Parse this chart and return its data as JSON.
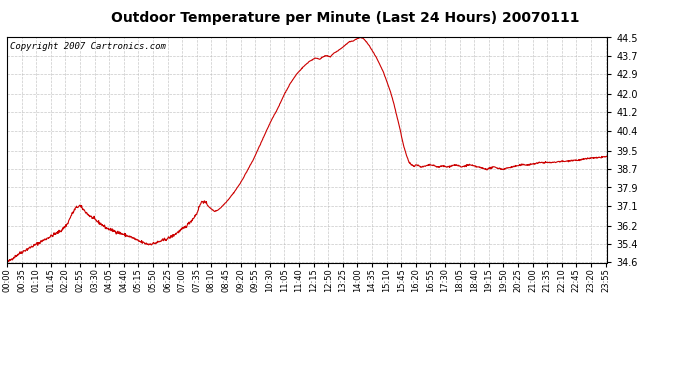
{
  "title": "Outdoor Temperature per Minute (Last 24 Hours) 20070111",
  "copyright_text": "Copyright 2007 Cartronics.com",
  "line_color": "#cc0000",
  "background_color": "#ffffff",
  "plot_bg_color": "#ffffff",
  "grid_color": "#bbbbbb",
  "yticks": [
    34.6,
    35.4,
    36.2,
    37.1,
    37.9,
    38.7,
    39.5,
    40.4,
    41.2,
    42.0,
    42.9,
    43.7,
    44.5
  ],
  "ylim": [
    34.6,
    44.5
  ],
  "xtick_labels": [
    "00:00",
    "00:35",
    "01:10",
    "01:45",
    "02:20",
    "02:55",
    "03:30",
    "04:05",
    "04:40",
    "05:15",
    "05:50",
    "06:25",
    "07:00",
    "07:35",
    "08:10",
    "08:45",
    "09:20",
    "09:55",
    "10:30",
    "11:05",
    "11:40",
    "12:15",
    "12:50",
    "13:25",
    "14:00",
    "14:35",
    "15:10",
    "15:45",
    "16:20",
    "16:55",
    "17:30",
    "18:05",
    "18:40",
    "19:15",
    "19:50",
    "20:25",
    "21:00",
    "21:35",
    "22:10",
    "22:45",
    "23:20",
    "23:55"
  ],
  "control_points": [
    [
      0,
      34.6
    ],
    [
      15,
      34.8
    ],
    [
      30,
      35.0
    ],
    [
      50,
      35.2
    ],
    [
      70,
      35.4
    ],
    [
      90,
      35.6
    ],
    [
      110,
      35.8
    ],
    [
      130,
      36.0
    ],
    [
      145,
      36.3
    ],
    [
      155,
      36.7
    ],
    [
      165,
      37.0
    ],
    [
      175,
      37.1
    ],
    [
      185,
      36.9
    ],
    [
      195,
      36.7
    ],
    [
      210,
      36.5
    ],
    [
      225,
      36.3
    ],
    [
      240,
      36.1
    ],
    [
      255,
      36.0
    ],
    [
      270,
      35.9
    ],
    [
      285,
      35.8
    ],
    [
      300,
      35.7
    ],
    [
      315,
      35.55
    ],
    [
      330,
      35.45
    ],
    [
      340,
      35.4
    ],
    [
      355,
      35.45
    ],
    [
      370,
      35.55
    ],
    [
      385,
      35.65
    ],
    [
      400,
      35.8
    ],
    [
      415,
      36.0
    ],
    [
      430,
      36.2
    ],
    [
      445,
      36.5
    ],
    [
      455,
      36.75
    ],
    [
      462,
      37.1
    ],
    [
      468,
      37.3
    ],
    [
      475,
      37.25
    ],
    [
      482,
      37.1
    ],
    [
      490,
      36.95
    ],
    [
      498,
      36.85
    ],
    [
      505,
      36.9
    ],
    [
      512,
      37.0
    ],
    [
      520,
      37.15
    ],
    [
      530,
      37.35
    ],
    [
      545,
      37.7
    ],
    [
      560,
      38.1
    ],
    [
      575,
      38.6
    ],
    [
      590,
      39.1
    ],
    [
      605,
      39.7
    ],
    [
      620,
      40.3
    ],
    [
      635,
      40.9
    ],
    [
      650,
      41.4
    ],
    [
      665,
      42.0
    ],
    [
      680,
      42.5
    ],
    [
      695,
      42.9
    ],
    [
      710,
      43.2
    ],
    [
      725,
      43.45
    ],
    [
      740,
      43.6
    ],
    [
      750,
      43.55
    ],
    [
      758,
      43.65
    ],
    [
      765,
      43.7
    ],
    [
      775,
      43.65
    ],
    [
      783,
      43.8
    ],
    [
      792,
      43.9
    ],
    [
      800,
      44.0
    ],
    [
      810,
      44.15
    ],
    [
      820,
      44.3
    ],
    [
      830,
      44.35
    ],
    [
      840,
      44.45
    ],
    [
      848,
      44.5
    ],
    [
      855,
      44.45
    ],
    [
      862,
      44.3
    ],
    [
      870,
      44.1
    ],
    [
      878,
      43.85
    ],
    [
      886,
      43.6
    ],
    [
      894,
      43.3
    ],
    [
      902,
      43.0
    ],
    [
      910,
      42.6
    ],
    [
      918,
      42.2
    ],
    [
      926,
      41.7
    ],
    [
      934,
      41.1
    ],
    [
      942,
      40.5
    ],
    [
      950,
      39.8
    ],
    [
      958,
      39.3
    ],
    [
      964,
      39.0
    ],
    [
      970,
      38.9
    ],
    [
      976,
      38.85
    ],
    [
      982,
      38.9
    ],
    [
      988,
      38.85
    ],
    [
      995,
      38.8
    ],
    [
      1005,
      38.85
    ],
    [
      1015,
      38.9
    ],
    [
      1025,
      38.85
    ],
    [
      1035,
      38.8
    ],
    [
      1045,
      38.85
    ],
    [
      1055,
      38.8
    ],
    [
      1065,
      38.85
    ],
    [
      1075,
      38.9
    ],
    [
      1083,
      38.85
    ],
    [
      1090,
      38.8
    ],
    [
      1098,
      38.85
    ],
    [
      1108,
      38.9
    ],
    [
      1118,
      38.85
    ],
    [
      1130,
      38.8
    ],
    [
      1140,
      38.75
    ],
    [
      1150,
      38.7
    ],
    [
      1158,
      38.75
    ],
    [
      1168,
      38.8
    ],
    [
      1178,
      38.75
    ],
    [
      1188,
      38.7
    ],
    [
      1198,
      38.75
    ],
    [
      1210,
      38.8
    ],
    [
      1222,
      38.85
    ],
    [
      1235,
      38.9
    ],
    [
      1250,
      38.9
    ],
    [
      1265,
      38.95
    ],
    [
      1280,
      39.0
    ],
    [
      1295,
      39.0
    ],
    [
      1310,
      39.0
    ],
    [
      1325,
      39.05
    ],
    [
      1340,
      39.05
    ],
    [
      1355,
      39.1
    ],
    [
      1370,
      39.1
    ],
    [
      1385,
      39.15
    ],
    [
      1400,
      39.2
    ],
    [
      1415,
      39.2
    ],
    [
      1430,
      39.25
    ],
    [
      1439,
      39.25
    ]
  ]
}
